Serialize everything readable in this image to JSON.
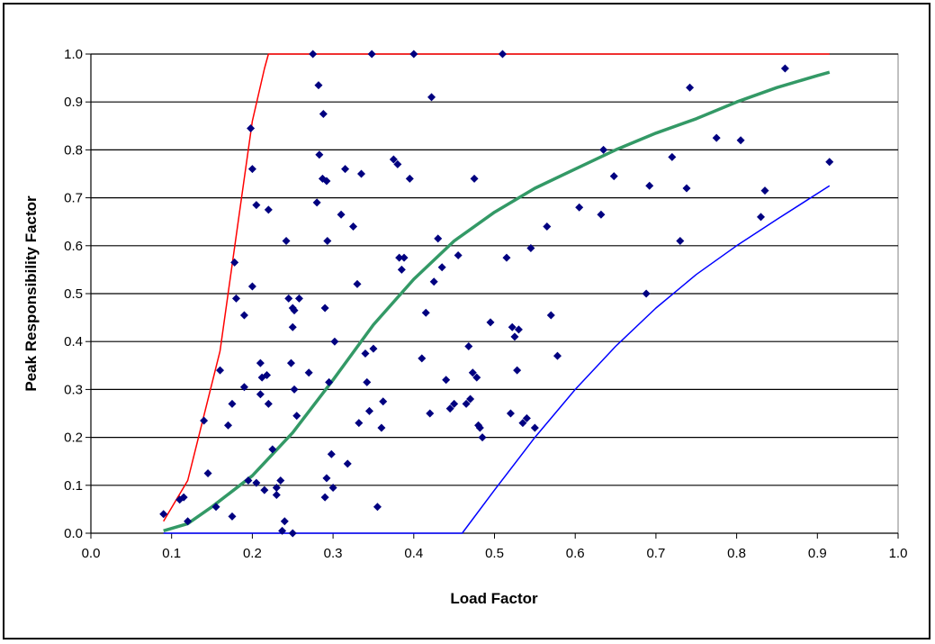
{
  "chart_data": {
    "type": "scatter",
    "title": "",
    "xlabel": "Load Factor",
    "ylabel": "Peak Responsibility Factor",
    "xlim": [
      0.0,
      1.0
    ],
    "ylim": [
      0.0,
      1.0
    ],
    "x_ticks": [
      "0.0",
      "0.1",
      "0.2",
      "0.3",
      "0.4",
      "0.5",
      "0.6",
      "0.7",
      "0.8",
      "0.9",
      "1.0"
    ],
    "y_ticks": [
      "0.0",
      "0.1",
      "0.2",
      "0.3",
      "0.4",
      "0.5",
      "0.6",
      "0.7",
      "0.8",
      "0.9",
      "1.0"
    ],
    "grid": "horizontal",
    "legend": "none",
    "series": [
      {
        "kind": "points",
        "color": "#000080",
        "points": [
          [
            0.09,
            0.04
          ],
          [
            0.11,
            0.07
          ],
          [
            0.115,
            0.075
          ],
          [
            0.12,
            0.025
          ],
          [
            0.14,
            0.235
          ],
          [
            0.145,
            0.125
          ],
          [
            0.155,
            0.055
          ],
          [
            0.16,
            0.34
          ],
          [
            0.17,
            0.225
          ],
          [
            0.175,
            0.27
          ],
          [
            0.175,
            0.035
          ],
          [
            0.178,
            0.565
          ],
          [
            0.18,
            0.49
          ],
          [
            0.19,
            0.455
          ],
          [
            0.19,
            0.305
          ],
          [
            0.195,
            0.11
          ],
          [
            0.198,
            0.845
          ],
          [
            0.2,
            0.76
          ],
          [
            0.2,
            0.515
          ],
          [
            0.205,
            0.685
          ],
          [
            0.205,
            0.105
          ],
          [
            0.21,
            0.355
          ],
          [
            0.21,
            0.29
          ],
          [
            0.212,
            0.325
          ],
          [
            0.215,
            0.09
          ],
          [
            0.218,
            0.33
          ],
          [
            0.22,
            0.27
          ],
          [
            0.22,
            0.675
          ],
          [
            0.225,
            0.175
          ],
          [
            0.23,
            0.08
          ],
          [
            0.23,
            0.095
          ],
          [
            0.235,
            0.11
          ],
          [
            0.237,
            0.005
          ],
          [
            0.24,
            0.025
          ],
          [
            0.242,
            0.61
          ],
          [
            0.245,
            0.49
          ],
          [
            0.248,
            0.355
          ],
          [
            0.25,
            0.43
          ],
          [
            0.25,
            0.47
          ],
          [
            0.252,
            0.465
          ],
          [
            0.252,
            0.3
          ],
          [
            0.255,
            0.245
          ],
          [
            0.258,
            0.49
          ],
          [
            0.25,
            0.0
          ],
          [
            0.27,
            0.335
          ],
          [
            0.275,
            1.0
          ],
          [
            0.28,
            0.69
          ],
          [
            0.282,
            0.935
          ],
          [
            0.283,
            0.79
          ],
          [
            0.287,
            0.74
          ],
          [
            0.288,
            0.875
          ],
          [
            0.29,
            0.47
          ],
          [
            0.292,
            0.735
          ],
          [
            0.293,
            0.61
          ],
          [
            0.29,
            0.075
          ],
          [
            0.292,
            0.115
          ],
          [
            0.295,
            0.315
          ],
          [
            0.298,
            0.165
          ],
          [
            0.3,
            0.095
          ],
          [
            0.302,
            0.4
          ],
          [
            0.31,
            0.665
          ],
          [
            0.315,
            0.76
          ],
          [
            0.318,
            0.145
          ],
          [
            0.325,
            0.64
          ],
          [
            0.33,
            0.52
          ],
          [
            0.332,
            0.23
          ],
          [
            0.335,
            0.75
          ],
          [
            0.34,
            0.375
          ],
          [
            0.342,
            0.315
          ],
          [
            0.345,
            0.255
          ],
          [
            0.348,
            1.0
          ],
          [
            0.35,
            0.385
          ],
          [
            0.355,
            0.055
          ],
          [
            0.36,
            0.22
          ],
          [
            0.362,
            0.275
          ],
          [
            0.375,
            0.78
          ],
          [
            0.38,
            0.77
          ],
          [
            0.382,
            0.575
          ],
          [
            0.385,
            0.55
          ],
          [
            0.388,
            0.575
          ],
          [
            0.395,
            0.74
          ],
          [
            0.4,
            1.0
          ],
          [
            0.41,
            0.365
          ],
          [
            0.415,
            0.46
          ],
          [
            0.42,
            0.25
          ],
          [
            0.422,
            0.91
          ],
          [
            0.425,
            0.525
          ],
          [
            0.43,
            0.615
          ],
          [
            0.435,
            0.555
          ],
          [
            0.44,
            0.32
          ],
          [
            0.445,
            0.26
          ],
          [
            0.45,
            0.27
          ],
          [
            0.455,
            0.58
          ],
          [
            0.465,
            0.27
          ],
          [
            0.468,
            0.39
          ],
          [
            0.47,
            0.28
          ],
          [
            0.473,
            0.335
          ],
          [
            0.475,
            0.74
          ],
          [
            0.478,
            0.325
          ],
          [
            0.48,
            0.225
          ],
          [
            0.482,
            0.22
          ],
          [
            0.485,
            0.2
          ],
          [
            0.495,
            0.44
          ],
          [
            0.51,
            1.0
          ],
          [
            0.515,
            0.575
          ],
          [
            0.52,
            0.25
          ],
          [
            0.522,
            0.43
          ],
          [
            0.525,
            0.41
          ],
          [
            0.53,
            0.425
          ],
          [
            0.528,
            0.34
          ],
          [
            0.535,
            0.23
          ],
          [
            0.54,
            0.24
          ],
          [
            0.545,
            0.595
          ],
          [
            0.55,
            0.22
          ],
          [
            0.565,
            0.64
          ],
          [
            0.57,
            0.455
          ],
          [
            0.578,
            0.37
          ],
          [
            0.605,
            0.68
          ],
          [
            0.632,
            0.665
          ],
          [
            0.635,
            0.8
          ],
          [
            0.648,
            0.745
          ],
          [
            0.688,
            0.5
          ],
          [
            0.692,
            0.725
          ],
          [
            0.72,
            0.785
          ],
          [
            0.73,
            0.61
          ],
          [
            0.738,
            0.72
          ],
          [
            0.742,
            0.93
          ],
          [
            0.775,
            0.825
          ],
          [
            0.805,
            0.82
          ],
          [
            0.83,
            0.66
          ],
          [
            0.835,
            0.715
          ],
          [
            0.86,
            0.97
          ],
          [
            0.915,
            0.775
          ]
        ]
      },
      {
        "kind": "line",
        "color": "#ff0000",
        "points": [
          [
            0.09,
            0.025
          ],
          [
            0.12,
            0.11
          ],
          [
            0.16,
            0.38
          ],
          [
            0.19,
            0.74
          ],
          [
            0.2,
            0.86
          ],
          [
            0.215,
            0.97
          ],
          [
            0.22,
            1.0
          ],
          [
            0.3,
            1.0
          ],
          [
            0.6,
            1.0
          ],
          [
            0.915,
            1.0
          ]
        ]
      },
      {
        "kind": "line",
        "color": "#339966",
        "points": [
          [
            0.09,
            0.005
          ],
          [
            0.12,
            0.02
          ],
          [
            0.15,
            0.055
          ],
          [
            0.2,
            0.12
          ],
          [
            0.25,
            0.21
          ],
          [
            0.3,
            0.32
          ],
          [
            0.35,
            0.435
          ],
          [
            0.4,
            0.53
          ],
          [
            0.45,
            0.61
          ],
          [
            0.5,
            0.67
          ],
          [
            0.55,
            0.72
          ],
          [
            0.6,
            0.76
          ],
          [
            0.65,
            0.8
          ],
          [
            0.7,
            0.835
          ],
          [
            0.75,
            0.865
          ],
          [
            0.8,
            0.9
          ],
          [
            0.85,
            0.93
          ],
          [
            0.9,
            0.955
          ],
          [
            0.915,
            0.962
          ]
        ]
      },
      {
        "kind": "line",
        "color": "#0000ff",
        "points": [
          [
            0.09,
            0.0
          ],
          [
            0.46,
            0.0
          ],
          [
            0.5,
            0.09
          ],
          [
            0.55,
            0.2
          ],
          [
            0.6,
            0.3
          ],
          [
            0.65,
            0.39
          ],
          [
            0.7,
            0.47
          ],
          [
            0.75,
            0.54
          ],
          [
            0.8,
            0.6
          ],
          [
            0.85,
            0.655
          ],
          [
            0.915,
            0.725
          ]
        ]
      }
    ]
  }
}
